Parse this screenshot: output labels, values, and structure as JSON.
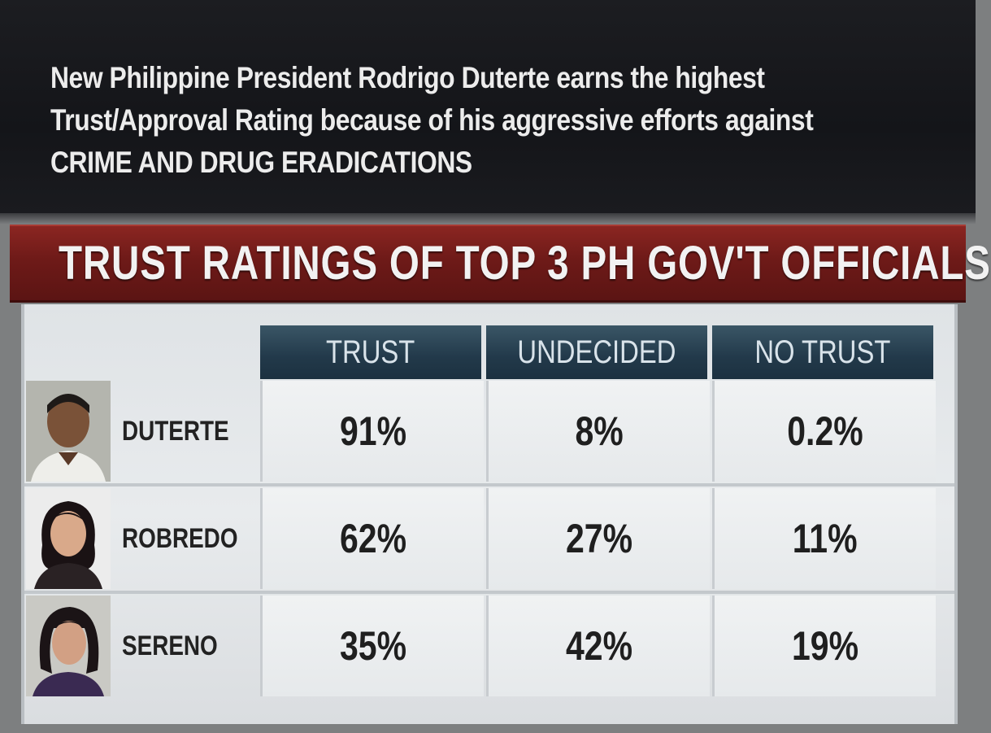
{
  "caption": {
    "line1": "New Philippine President Rodrigo Duterte earns the highest",
    "line2": "Trust/Approval Rating because of his aggressive efforts against",
    "line3": "CRIME AND DRUG ERADICATIONS"
  },
  "colors": {
    "banner": "#6e1a18",
    "header": "#22394a",
    "caption_bg": "#141519"
  },
  "chart_data": {
    "type": "table",
    "title": "TRUST RATINGS OF TOP 3 PH GOV'T OFFICIALS",
    "columns": [
      "TRUST",
      "UNDECIDED",
      "NO TRUST"
    ],
    "rows": [
      {
        "name": "DUTERTE",
        "values": [
          "91%",
          "8%",
          "0.2%"
        ],
        "photo": "portrait-photo"
      },
      {
        "name": "ROBREDO",
        "values": [
          "62%",
          "27%",
          "11%"
        ],
        "photo": "portrait-photo"
      },
      {
        "name": "SERENO",
        "values": [
          "35%",
          "42%",
          "19%"
        ],
        "photo": "portrait-photo"
      }
    ]
  }
}
